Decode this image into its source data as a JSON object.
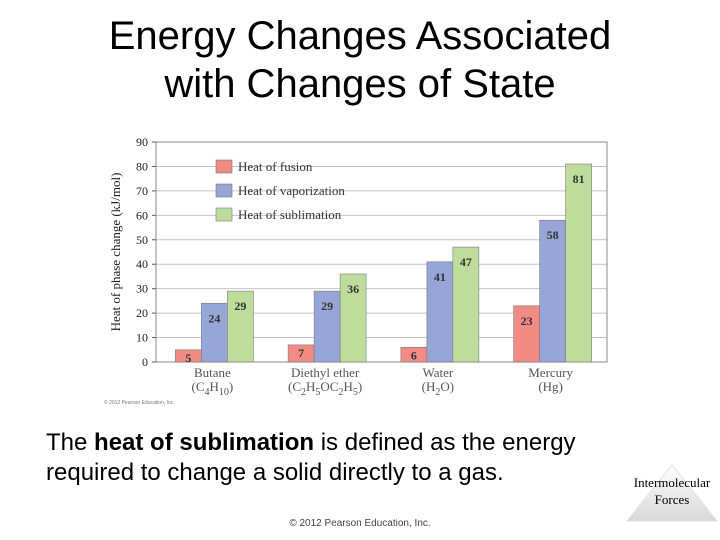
{
  "slide": {
    "title_line1": "Energy Changes Associated",
    "title_line2": "with Changes of State",
    "body_bold": "heat of sublimation",
    "body_pre": "The ",
    "body_post_line1": " is defined as the energy",
    "body_line2": "required to change a solid directly to a gas.",
    "badge_line1": "Intermolecular",
    "badge_line2": "Forces",
    "footer": "© 2012 Pearson Education, Inc."
  },
  "chart_data": {
    "type": "bar",
    "ylabel": "Heat of phase change (kJ/mol)",
    "ylim": [
      0,
      90
    ],
    "yticks": [
      0,
      10,
      20,
      30,
      40,
      50,
      60,
      70,
      80,
      90
    ],
    "grid": true,
    "legend_position": "top-left",
    "copyright": "© 2012 Pearson Education, Inc.",
    "categories": [
      {
        "name": "Butane",
        "formula": [
          [
            "C",
            ""
          ],
          [
            "4",
            "sub"
          ],
          [
            "H",
            ""
          ],
          [
            "10",
            "sub"
          ]
        ]
      },
      {
        "name": "Diethyl ether",
        "formula": [
          [
            "C",
            ""
          ],
          [
            "2",
            "sub"
          ],
          [
            "H",
            ""
          ],
          [
            "5",
            "sub"
          ],
          [
            "OC",
            ""
          ],
          [
            "2",
            "sub"
          ],
          [
            "H",
            ""
          ],
          [
            "5",
            "sub"
          ]
        ]
      },
      {
        "name": "Water",
        "formula": [
          [
            "H",
            ""
          ],
          [
            "2",
            "sub"
          ],
          [
            "O",
            ""
          ]
        ]
      },
      {
        "name": "Mercury",
        "formula": [
          [
            "Hg",
            ""
          ]
        ]
      }
    ],
    "series": [
      {
        "name": "Heat of fusion",
        "color": "#f08c84",
        "values": [
          5,
          7,
          6,
          23
        ]
      },
      {
        "name": "Heat of vaporization",
        "color": "#97a6d6",
        "values": [
          24,
          29,
          41,
          58
        ]
      },
      {
        "name": "Heat of sublimation",
        "color": "#bedd9c",
        "values": [
          29,
          36,
          47,
          81
        ]
      }
    ]
  }
}
